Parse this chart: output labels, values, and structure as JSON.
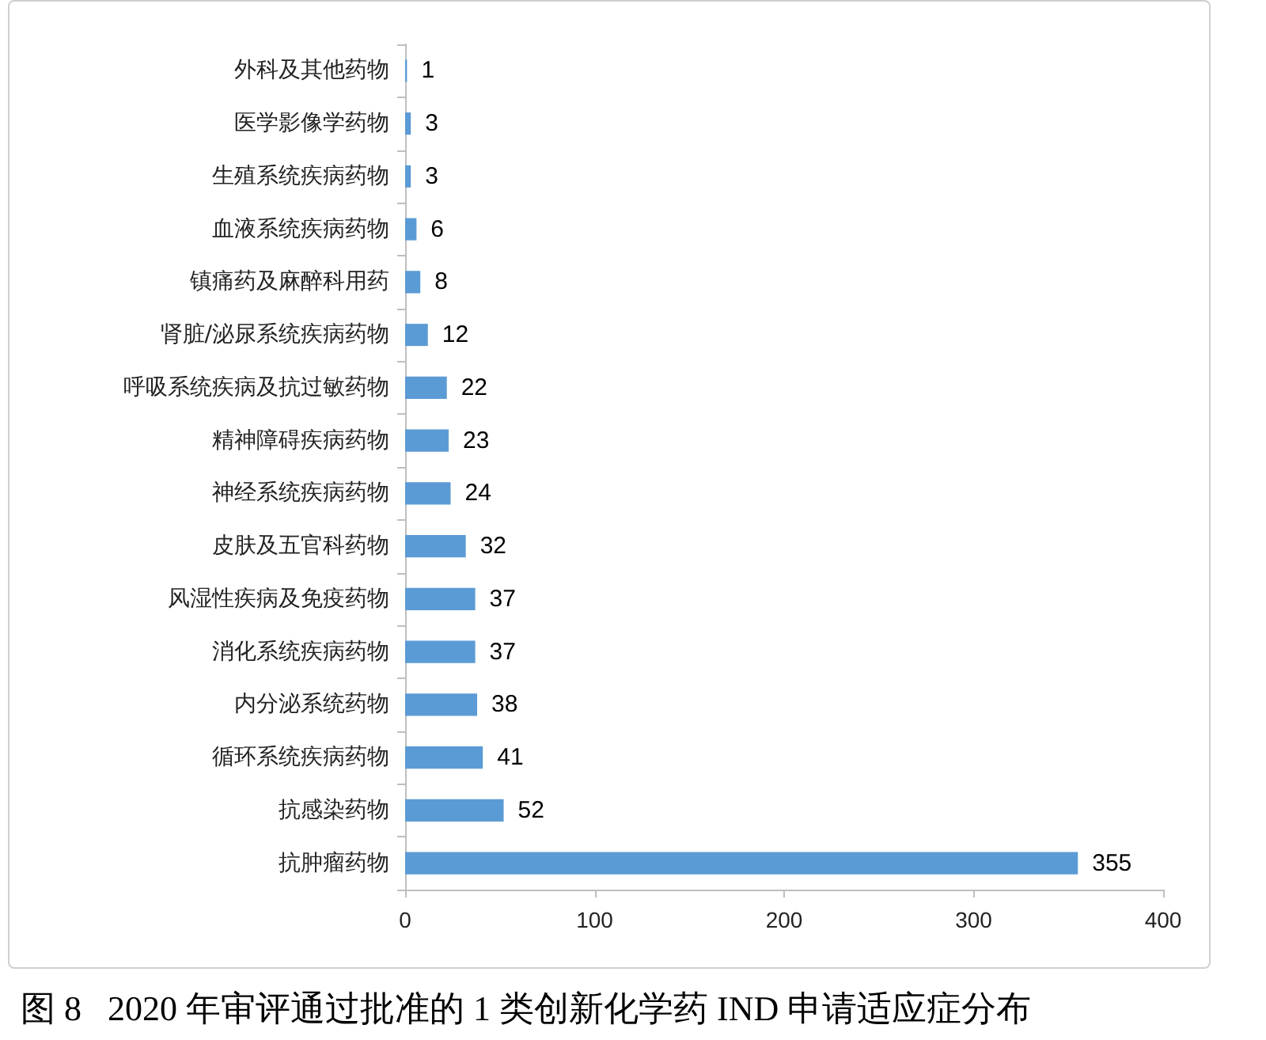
{
  "chart_data": {
    "type": "bar",
    "orientation": "horizontal",
    "title": "图 8   2020 年审评通过批准的 1 类创新化学药 IND 申请适应症分布",
    "categories": [
      "外科及其他药物",
      "医学影像学药物",
      "生殖系统疾病药物",
      "血液系统疾病药物",
      "镇痛药及麻醉科用药",
      "肾脏/泌尿系统疾病药物",
      "呼吸系统疾病及抗过敏药物",
      "精神障碍疾病药物",
      "神经系统疾病药物",
      "皮肤及五官科药物",
      "风湿性疾病及免疫药物",
      "消化系统疾病药物",
      "内分泌系统药物",
      "循环系统疾病药物",
      "抗感染药物",
      "抗肿瘤药物"
    ],
    "values": [
      1,
      3,
      3,
      6,
      8,
      12,
      22,
      23,
      24,
      32,
      37,
      37,
      38,
      41,
      52,
      355
    ],
    "color": "#5b9bd5",
    "xlim": [
      0,
      400
    ],
    "xticks": [
      0,
      100,
      200,
      300,
      400
    ],
    "data_labels": true,
    "grid": false
  }
}
